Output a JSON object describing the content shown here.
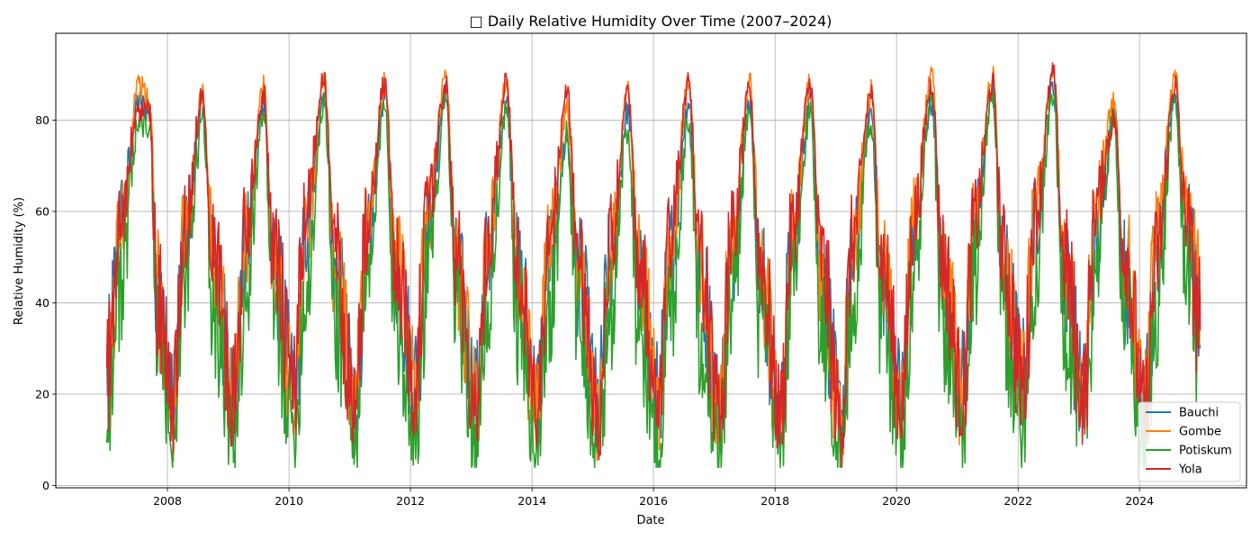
{
  "chart_data": {
    "type": "line",
    "title": "□ Daily Relative Humidity Over Time (2007–2024)",
    "xlabel": "Date",
    "ylabel": "Relative Humidity (%)",
    "xlim": [
      "2006-03-01",
      "2025-10-05"
    ],
    "ylim": [
      -0.5,
      99
    ],
    "x_ticks": [
      "2008",
      "2010",
      "2012",
      "2014",
      "2016",
      "2018",
      "2020",
      "2022",
      "2024"
    ],
    "y_ticks": [
      0,
      20,
      40,
      60,
      80
    ],
    "grid": true,
    "legend_position": "bottom-right",
    "series": [
      {
        "name": "Bauchi",
        "color": "#1f77b4",
        "x": [
          "2007-01-01",
          "2007-04-01",
          "2007-07-10",
          "2007-09-15",
          "2007-11-01",
          "2008-02-01",
          "2008-04-15",
          "2008-08-01",
          "2008-10-01",
          "2009-02-01",
          "2009-04-15",
          "2009-08-01",
          "2009-10-01",
          "2010-02-01",
          "2010-04-15",
          "2010-08-01",
          "2010-10-01",
          "2011-02-01",
          "2011-04-15",
          "2011-08-01",
          "2011-10-01",
          "2012-02-01",
          "2012-04-15",
          "2012-08-01",
          "2012-10-01",
          "2013-02-01",
          "2013-04-15",
          "2013-08-01",
          "2013-10-01",
          "2014-02-01",
          "2014-04-15",
          "2014-08-01",
          "2014-10-01",
          "2015-02-01",
          "2015-04-15",
          "2015-08-01",
          "2015-10-01",
          "2016-02-01",
          "2016-04-15",
          "2016-08-01",
          "2016-10-01",
          "2017-02-01",
          "2017-04-15",
          "2017-08-01",
          "2017-10-01",
          "2018-02-01",
          "2018-04-15",
          "2018-08-01",
          "2018-10-01",
          "2019-02-01",
          "2019-04-15",
          "2019-08-01",
          "2019-10-01",
          "2020-02-01",
          "2020-04-15",
          "2020-08-01",
          "2020-10-01",
          "2021-02-01",
          "2021-04-15",
          "2021-08-01",
          "2021-10-01",
          "2022-02-01",
          "2022-04-15",
          "2022-08-01",
          "2022-10-01",
          "2023-02-01",
          "2023-04-15",
          "2023-08-01",
          "2023-10-01",
          "2024-02-01",
          "2024-04-15",
          "2024-08-01",
          "2024-10-01",
          "2024-12-31"
        ],
        "y": [
          25,
          60,
          84,
          82,
          40,
          18,
          55,
          83,
          48,
          20,
          52,
          84,
          47,
          22,
          55,
          86,
          46,
          20,
          52,
          85,
          47,
          24,
          56,
          86,
          46,
          20,
          52,
          84,
          47,
          20,
          50,
          76,
          46,
          18,
          48,
          82,
          46,
          20,
          52,
          84,
          47,
          18,
          50,
          84,
          46,
          17,
          52,
          84,
          47,
          16,
          50,
          82,
          46,
          20,
          55,
          84,
          46,
          22,
          55,
          86,
          46,
          24,
          58,
          87,
          47,
          20,
          52,
          82,
          46,
          18,
          50,
          86,
          60,
          38
        ]
      },
      {
        "name": "Gombe",
        "color": "#ff7f0e",
        "x": [
          "2007-01-01",
          "2007-04-01",
          "2007-07-10",
          "2007-09-15",
          "2007-11-01",
          "2008-02-01",
          "2008-04-15",
          "2008-08-01",
          "2008-10-01",
          "2009-02-01",
          "2009-04-15",
          "2009-08-01",
          "2009-10-01",
          "2010-02-01",
          "2010-04-15",
          "2010-08-01",
          "2010-10-01",
          "2011-02-01",
          "2011-04-15",
          "2011-08-01",
          "2011-10-01",
          "2012-02-01",
          "2012-04-15",
          "2012-08-01",
          "2012-10-01",
          "2013-02-01",
          "2013-04-15",
          "2013-08-01",
          "2013-10-01",
          "2014-02-01",
          "2014-04-15",
          "2014-08-01",
          "2014-10-01",
          "2015-02-01",
          "2015-04-15",
          "2015-08-01",
          "2015-10-01",
          "2016-02-01",
          "2016-04-15",
          "2016-08-01",
          "2016-10-01",
          "2017-02-01",
          "2017-04-15",
          "2017-08-01",
          "2017-10-01",
          "2018-02-01",
          "2018-04-15",
          "2018-08-01",
          "2018-10-01",
          "2019-02-01",
          "2019-04-15",
          "2019-08-01",
          "2019-10-01",
          "2020-02-01",
          "2020-04-15",
          "2020-08-01",
          "2020-10-01",
          "2021-02-01",
          "2021-04-15",
          "2021-08-01",
          "2021-10-01",
          "2022-02-01",
          "2022-04-15",
          "2022-08-01",
          "2022-10-01",
          "2023-02-01",
          "2023-04-15",
          "2023-08-01",
          "2023-10-01",
          "2024-02-01",
          "2024-04-15",
          "2024-08-01",
          "2024-10-01",
          "2024-12-31"
        ],
        "y": [
          20,
          58,
          88,
          84,
          42,
          16,
          54,
          86,
          50,
          18,
          54,
          87,
          48,
          20,
          56,
          88,
          48,
          18,
          54,
          88,
          48,
          22,
          58,
          90,
          48,
          18,
          54,
          88,
          48,
          16,
          52,
          82,
          46,
          14,
          50,
          86,
          48,
          18,
          54,
          88,
          48,
          16,
          52,
          88,
          48,
          15,
          54,
          88,
          48,
          14,
          52,
          86,
          48,
          18,
          58,
          90,
          48,
          20,
          58,
          90,
          48,
          22,
          60,
          90,
          48,
          20,
          62,
          84,
          50,
          18,
          54,
          90,
          64,
          42
        ]
      },
      {
        "name": "Potiskum",
        "color": "#2ca02c",
        "x": [
          "2007-01-01",
          "2007-04-01",
          "2007-07-10",
          "2007-09-15",
          "2007-11-01",
          "2008-02-01",
          "2008-04-15",
          "2008-08-01",
          "2008-10-01",
          "2009-02-01",
          "2009-04-15",
          "2009-08-01",
          "2009-10-01",
          "2010-02-01",
          "2010-04-15",
          "2010-08-01",
          "2010-10-01",
          "2011-02-01",
          "2011-04-15",
          "2011-08-01",
          "2011-10-01",
          "2012-02-01",
          "2012-04-15",
          "2012-08-01",
          "2012-10-01",
          "2013-02-01",
          "2013-04-15",
          "2013-08-01",
          "2013-10-01",
          "2014-02-01",
          "2014-04-15",
          "2014-08-01",
          "2014-10-01",
          "2015-02-01",
          "2015-04-15",
          "2015-08-01",
          "2015-10-01",
          "2016-02-01",
          "2016-04-15",
          "2016-08-01",
          "2016-10-01",
          "2017-02-01",
          "2017-04-15",
          "2017-08-01",
          "2017-10-01",
          "2018-02-01",
          "2018-04-15",
          "2018-08-01",
          "2018-10-01",
          "2019-02-01",
          "2019-04-15",
          "2019-08-01",
          "2019-10-01",
          "2020-02-01",
          "2020-04-15",
          "2020-08-01",
          "2020-10-01",
          "2021-02-01",
          "2021-04-15",
          "2021-08-01",
          "2021-10-01",
          "2022-02-01",
          "2022-04-15",
          "2022-08-01",
          "2022-10-01",
          "2023-02-01",
          "2023-04-15",
          "2023-08-01",
          "2023-10-01",
          "2024-02-01",
          "2024-04-15",
          "2024-08-01",
          "2024-10-01",
          "2024-12-31"
        ],
        "y": [
          15,
          45,
          80,
          78,
          36,
          10,
          44,
          80,
          40,
          10,
          42,
          82,
          38,
          12,
          44,
          84,
          38,
          10,
          42,
          84,
          38,
          12,
          46,
          86,
          38,
          10,
          42,
          82,
          38,
          8,
          40,
          76,
          36,
          6,
          38,
          78,
          36,
          8,
          40,
          80,
          36,
          8,
          40,
          82,
          36,
          8,
          42,
          82,
          38,
          7,
          40,
          80,
          36,
          10,
          46,
          84,
          36,
          10,
          46,
          86,
          36,
          12,
          48,
          86,
          38,
          12,
          50,
          80,
          38,
          8,
          40,
          84,
          50,
          30
        ]
      },
      {
        "name": "Yola",
        "color": "#d62728",
        "x": [
          "2007-01-01",
          "2007-04-01",
          "2007-07-10",
          "2007-09-15",
          "2007-11-01",
          "2008-02-01",
          "2008-04-15",
          "2008-08-01",
          "2008-10-01",
          "2009-02-01",
          "2009-04-15",
          "2009-08-01",
          "2009-10-01",
          "2010-02-01",
          "2010-04-15",
          "2010-08-01",
          "2010-10-01",
          "2011-02-01",
          "2011-04-15",
          "2011-08-01",
          "2011-10-01",
          "2012-02-01",
          "2012-04-15",
          "2012-08-01",
          "2012-10-01",
          "2013-02-01",
          "2013-04-15",
          "2013-08-01",
          "2013-10-01",
          "2014-02-01",
          "2014-04-15",
          "2014-08-01",
          "2014-10-01",
          "2015-02-01",
          "2015-04-15",
          "2015-08-01",
          "2015-10-01",
          "2016-02-01",
          "2016-04-15",
          "2016-08-01",
          "2016-10-01",
          "2017-02-01",
          "2017-04-15",
          "2017-08-01",
          "2017-10-01",
          "2018-02-01",
          "2018-04-15",
          "2018-08-01",
          "2018-10-01",
          "2019-02-01",
          "2019-04-15",
          "2019-08-01",
          "2019-10-01",
          "2020-02-01",
          "2020-04-15",
          "2020-08-01",
          "2020-10-01",
          "2021-02-01",
          "2021-04-15",
          "2021-08-01",
          "2021-10-01",
          "2022-02-01",
          "2022-04-15",
          "2022-08-01",
          "2022-10-01",
          "2023-02-01",
          "2023-04-15",
          "2023-08-01",
          "2023-10-01",
          "2024-02-01",
          "2024-04-15",
          "2024-08-01",
          "2024-10-01",
          "2024-12-31"
        ],
        "y": [
          25,
          60,
          82,
          82,
          42,
          18,
          56,
          86,
          52,
          20,
          56,
          86,
          50,
          22,
          60,
          90,
          52,
          18,
          56,
          88,
          50,
          24,
          60,
          88,
          50,
          18,
          56,
          88,
          50,
          16,
          54,
          86,
          50,
          14,
          52,
          86,
          50,
          16,
          56,
          88,
          50,
          16,
          54,
          86,
          50,
          16,
          56,
          88,
          50,
          14,
          54,
          86,
          50,
          18,
          58,
          88,
          50,
          20,
          58,
          88,
          50,
          22,
          60,
          90,
          50,
          20,
          62,
          80,
          52,
          16,
          50,
          88,
          60,
          34
        ]
      }
    ]
  }
}
